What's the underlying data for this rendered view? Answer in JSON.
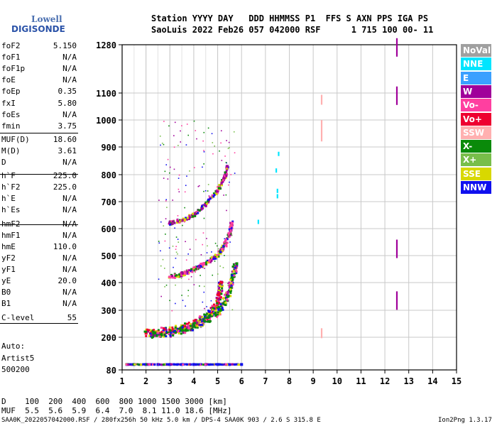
{
  "logo": {
    "line1": "Lowell",
    "line2": "DIGISONDE"
  },
  "header": {
    "labels": "Station YYYY DAY   DDD HHMMSS P1  FFS S AXN PPS IGA PS",
    "values": "SaoLuis 2022 Feb26 057 042000 RSF      1 715 100 00- 11"
  },
  "params": [
    {
      "name": "foF2",
      "value": "5.150"
    },
    {
      "name": "foF1",
      "value": "N/A"
    },
    {
      "name": "foF1p",
      "value": "N/A"
    },
    {
      "name": "foE",
      "value": "N/A"
    },
    {
      "name": "foEp",
      "value": "0.35"
    },
    {
      "name": "fxI",
      "value": "5.80"
    },
    {
      "name": "foEs",
      "value": "N/A"
    },
    {
      "name": "fmin",
      "value": "3.75"
    },
    {
      "name": "MUF(D)",
      "value": "18.60"
    },
    {
      "name": "M(D)",
      "value": "3.61"
    },
    {
      "name": "D",
      "value": "N/A"
    },
    {
      "name": "h`F",
      "value": "225.0"
    },
    {
      "name": "h`F2",
      "value": "225.0"
    },
    {
      "name": "h`E",
      "value": "N/A"
    },
    {
      "name": "h`Es",
      "value": "N/A"
    },
    {
      "name": "hmF2",
      "value": "N/A"
    },
    {
      "name": "hmF1",
      "value": "N/A"
    },
    {
      "name": "hmE",
      "value": "110.0"
    },
    {
      "name": "yF2",
      "value": "N/A"
    },
    {
      "name": "yF1",
      "value": "N/A"
    },
    {
      "name": "yE",
      "value": "20.0"
    },
    {
      "name": "B0",
      "value": "N/A"
    },
    {
      "name": "B1",
      "value": "N/A"
    },
    {
      "name": "C-level",
      "value": "55"
    }
  ],
  "misc": {
    "auto": "Auto:",
    "artist": "Artist5",
    "version": "500200"
  },
  "legend": [
    {
      "label": "NoVal",
      "color": "#a0a0a0"
    },
    {
      "label": "NNE",
      "color": "#00e5ff"
    },
    {
      "label": "E",
      "color": "#3aa0ff"
    },
    {
      "label": "W",
      "color": "#a0009a"
    },
    {
      "label": "Vo-",
      "color": "#ff3fa0"
    },
    {
      "label": "Vo+",
      "color": "#ee0030"
    },
    {
      "label": "SSW",
      "color": "#ffb0b0"
    },
    {
      "label": "X-",
      "color": "#0a8a0a"
    },
    {
      "label": "X+",
      "color": "#78be4a"
    },
    {
      "label": "SSE",
      "color": "#d8d800"
    },
    {
      "label": "NNW",
      "color": "#1010ee"
    }
  ],
  "bottom": {
    "d_row": "D    100  200  400  600  800 1000 1500 3000 [km]",
    "muf_row": "MUF  5.5  5.6  5.9  6.4  7.0  8.1 11.0 18.6 [MHz]",
    "footer_left": "SAA0K_2022057042000.RSF / 280fx256h 50 kHz 5.0 km / DPS-4 SAA0K 903 / 2.6 S 315.8 E",
    "footer_right": "Ion2Png 1.3.17"
  },
  "chart_data": {
    "type": "scatter",
    "xlim": [
      1,
      15
    ],
    "ylim": [
      80,
      1280
    ],
    "x_ticks": [
      1,
      2,
      3,
      4,
      5,
      6,
      7,
      8,
      9,
      10,
      11,
      12,
      13,
      14,
      15
    ],
    "y_ticks": [
      80,
      200,
      300,
      400,
      500,
      600,
      700,
      800,
      900,
      1000,
      1100,
      1280
    ],
    "minor_grid_x": [
      1,
      2,
      3,
      4,
      5,
      6
    ],
    "traces": [
      {
        "label": "O-trace F layer",
        "color": "#ee0030",
        "x": [
          2.0,
          2.5,
          3.0,
          3.5,
          4.0,
          4.5,
          4.8,
          5.0,
          5.1,
          5.15
        ],
        "y": [
          215,
          220,
          225,
          235,
          250,
          275,
          300,
          330,
          360,
          400
        ]
      },
      {
        "label": "X-trace F layer",
        "color": "#0a8a0a",
        "x": [
          2.3,
          3.0,
          3.5,
          4.0,
          4.5,
          5.0,
          5.3,
          5.5,
          5.6,
          5.8
        ],
        "y": [
          210,
          215,
          225,
          240,
          260,
          290,
          330,
          370,
          420,
          470
        ]
      },
      {
        "label": "second hop",
        "color": "#ff3fa0",
        "x": [
          3.0,
          3.5,
          4.0,
          4.5,
          5.0,
          5.3,
          5.5,
          5.6
        ],
        "y": [
          420,
          430,
          450,
          470,
          500,
          540,
          580,
          620
        ]
      },
      {
        "label": "third hop",
        "color": "#a0009a",
        "x": [
          3.0,
          3.5,
          4.0,
          4.5,
          5.0,
          5.3,
          5.4
        ],
        "y": [
          620,
          630,
          650,
          690,
          740,
          790,
          830
        ]
      },
      {
        "label": "Es layer",
        "color": "#1010ee",
        "x": [
          1.2,
          1.5,
          2.0,
          2.5,
          3.0,
          3.5,
          4.0,
          4.5,
          5.0,
          5.5,
          6.0
        ],
        "y": [
          100,
          100,
          100,
          100,
          100,
          100,
          100,
          100,
          100,
          100,
          100
        ]
      },
      {
        "label": "W markers",
        "color": "#a0009a",
        "x": [
          12.5,
          12.5,
          12.5,
          12.5
        ],
        "y": [
          1270,
          1090,
          525,
          335
        ]
      },
      {
        "label": "SSW markers",
        "color": "#ffb0b0",
        "x": [
          9.35,
          9.35,
          9.35
        ],
        "y": [
          1075,
          960,
          215
        ]
      },
      {
        "label": "NNE markers",
        "color": "#00e5ff",
        "x": [
          7.5,
          7.5,
          7.45,
          6.7,
          7.55
        ],
        "y": [
          740,
          720,
          815,
          625,
          875
        ]
      }
    ]
  }
}
